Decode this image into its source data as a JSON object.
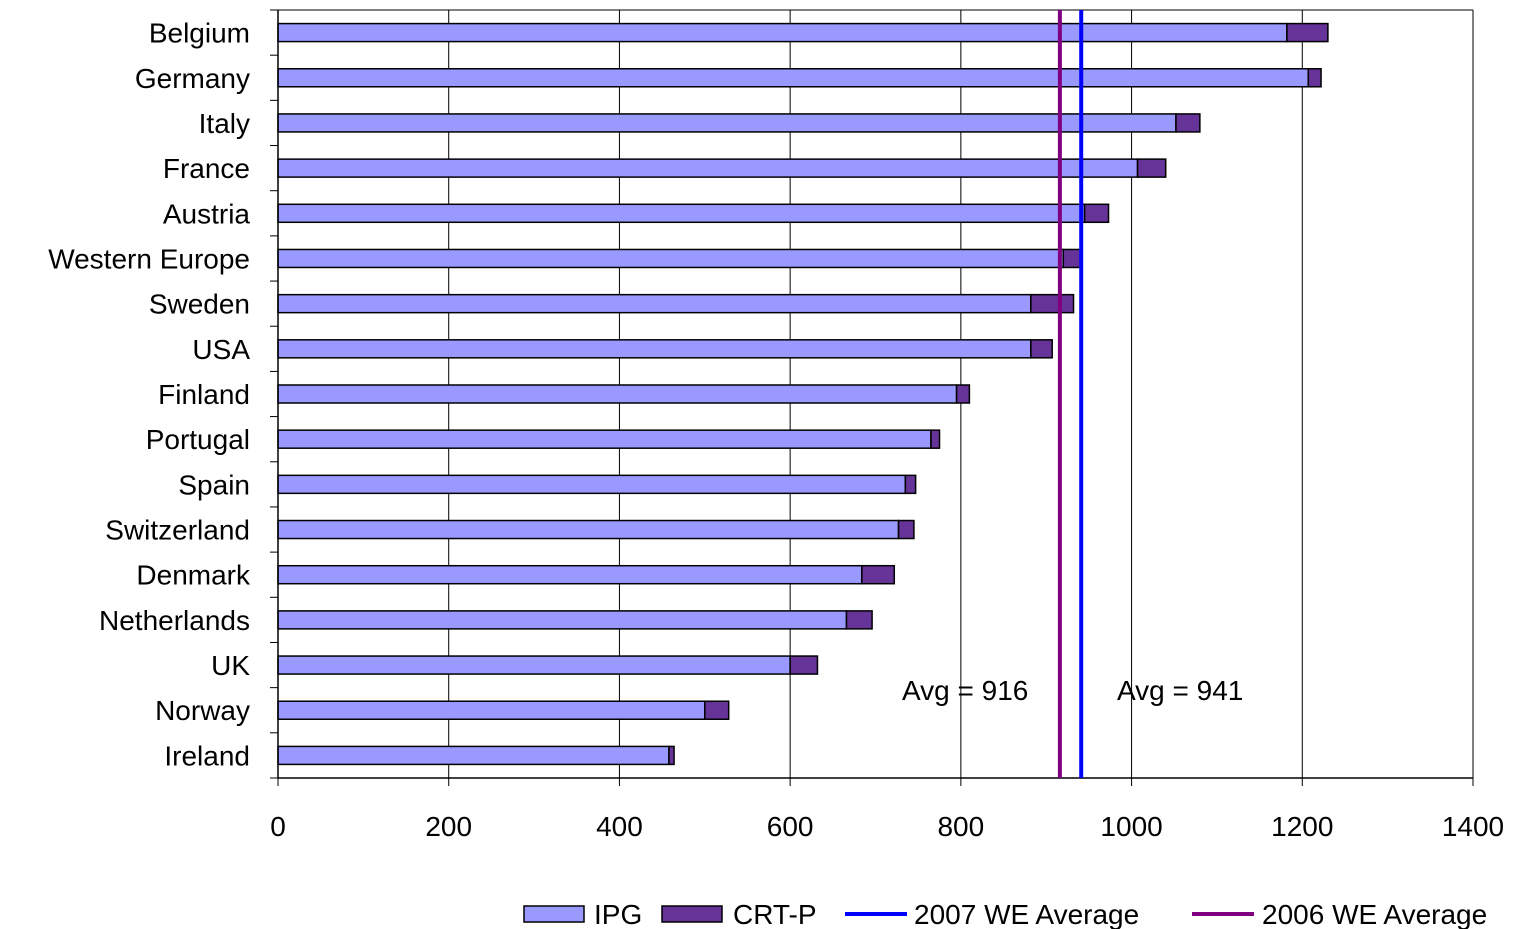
{
  "chart_data": {
    "type": "bar",
    "orientation": "horizontal",
    "stacked": true,
    "categories": [
      "Belgium",
      "Germany",
      "Italy",
      "France",
      "Austria",
      "Western Europe",
      "Sweden",
      "USA",
      "Finland",
      "Portugal",
      "Spain",
      "Switzerland",
      "Denmark",
      "Netherlands",
      "UK",
      "Norway",
      "Ireland"
    ],
    "series": [
      {
        "name": "IPG",
        "color": "#9999ff",
        "values": [
          1182,
          1207,
          1052,
          1007,
          945,
          920,
          882,
          882,
          795,
          765,
          735,
          727,
          684,
          666,
          600,
          500,
          458
        ]
      },
      {
        "name": "CRT-P",
        "color": "#663399",
        "values": [
          48,
          15,
          28,
          33,
          28,
          20,
          50,
          25,
          15,
          10,
          12,
          18,
          38,
          30,
          32,
          28,
          6
        ]
      }
    ],
    "reference_lines": [
      {
        "name": "2007 WE Average",
        "value": 941,
        "color": "#0000ff",
        "annotation": "Avg = 941"
      },
      {
        "name": "2006 WE Average",
        "value": 916,
        "color": "#800080",
        "annotation": "Avg = 916"
      }
    ],
    "x_ticks": [
      "0",
      "200",
      "400",
      "600",
      "800",
      "1000",
      "1200",
      "1400"
    ],
    "xlim": [
      0,
      1400
    ],
    "grid": "vertical",
    "legend_position": "bottom-right",
    "title": "",
    "xlabel": "",
    "ylabel": ""
  }
}
